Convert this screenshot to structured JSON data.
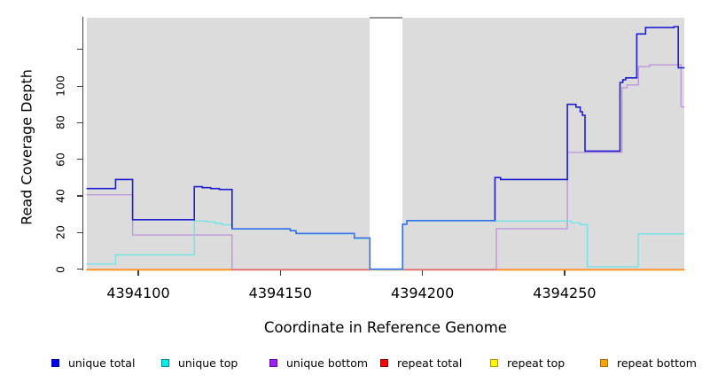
{
  "chart_data": {
    "type": "line",
    "subtype": "step-coverage",
    "title": "",
    "xlabel": "Coordinate in Reference Genome",
    "ylabel": "Read Coverage Depth",
    "xlim": [
      4394082,
      4394292
    ],
    "ylim": [
      0,
      137.5
    ],
    "x_ticks": [
      {
        "value": 4394100,
        "label": "4394100"
      },
      {
        "value": 4394150,
        "label": "4394150"
      },
      {
        "value": 4394200,
        "label": "4394200"
      },
      {
        "value": 4394250,
        "label": "4394250"
      }
    ],
    "y_ticks": [
      {
        "value": 0,
        "label": "0"
      },
      {
        "value": 20,
        "label": "20"
      },
      {
        "value": 40,
        "label": "40"
      },
      {
        "value": 60,
        "label": "60"
      },
      {
        "value": 80,
        "label": "80"
      },
      {
        "value": 100,
        "label": "100"
      },
      {
        "value": 120,
        "label": ""
      }
    ],
    "grid": false,
    "plot_bg_color": "#dcdcdc",
    "masked_region": {
      "x0": 4394181.5,
      "x1": 4394193,
      "fill": "#ffffff",
      "cap_color": "#949494"
    },
    "legend_position": "bottom",
    "overlap_colors": {
      "total_eq_top": "#3b6fe8",
      "bottom_on_zero_line": "#d8738f"
    },
    "series": [
      {
        "id": "unique_total",
        "label": "unique total",
        "line_color": "#1f1fd2",
        "legend_fill": "#0000f0",
        "legend_border": "#0000a8",
        "steps": [
          [
            4394082,
            44
          ],
          [
            4394092,
            49
          ],
          [
            4394098,
            27
          ],
          [
            4394119.7,
            45
          ],
          [
            4394122.5,
            44.5
          ],
          [
            4394125.5,
            44
          ],
          [
            4394128.5,
            43.5
          ],
          [
            4394133,
            22
          ],
          [
            4394153.5,
            21
          ],
          [
            4394155.5,
            19.5
          ],
          [
            4394176,
            17
          ],
          [
            4394181.5,
            0
          ],
          [
            4394193,
            24.5
          ],
          [
            4394194.5,
            26.5
          ],
          [
            4394225.5,
            50
          ],
          [
            4394227.5,
            49
          ],
          [
            4394251,
            90
          ],
          [
            4394254,
            88.5
          ],
          [
            4394255.5,
            86
          ],
          [
            4394256.3,
            84
          ],
          [
            4394257.2,
            64.5
          ],
          [
            4394269.5,
            102
          ],
          [
            4394270.5,
            103.5
          ],
          [
            4394271.5,
            104.5
          ],
          [
            4394275.4,
            128.5
          ],
          [
            4394278.5,
            132
          ],
          [
            4394288.5,
            132.5
          ],
          [
            4394290,
            110
          ]
        ]
      },
      {
        "id": "unique_top",
        "label": "unique top",
        "line_color": "#74e3e6",
        "legend_fill": "#00efef",
        "legend_border": "#0a8a8a",
        "steps": [
          [
            4394082,
            3
          ],
          [
            4394092,
            8
          ],
          [
            4394119.7,
            26.5
          ],
          [
            4394124,
            26
          ],
          [
            4394127,
            25.2
          ],
          [
            4394129.5,
            24.5
          ],
          [
            4394133,
            22
          ],
          [
            4394153.5,
            21
          ],
          [
            4394155.5,
            19.5
          ],
          [
            4394176,
            17
          ],
          [
            4394181.5,
            0
          ],
          [
            4394193,
            24.5
          ],
          [
            4394194.5,
            26.5
          ],
          [
            4394252.5,
            25.5
          ],
          [
            4394255.5,
            24.5
          ],
          [
            4394258,
            1.5
          ],
          [
            4394275.9,
            19.5
          ]
        ]
      },
      {
        "id": "unique_bottom",
        "label": "unique bottom",
        "line_color": "#bf96da",
        "legend_fill": "#a020f0",
        "legend_border": "#5c0da0",
        "steps": [
          [
            4394082,
            41
          ],
          [
            4394098,
            19
          ],
          [
            4394133,
            0
          ],
          [
            4394226,
            22.5
          ],
          [
            4394251,
            64.2
          ],
          [
            4394270.2,
            99.5
          ],
          [
            4394272,
            101
          ],
          [
            4394276,
            111
          ],
          [
            4394280,
            112
          ],
          [
            4394291,
            89
          ]
        ]
      },
      {
        "id": "repeat_total",
        "label": "repeat total",
        "line_color": "#e8313c",
        "legend_fill": "#ff0000",
        "legend_border": "#8f0000",
        "steps": [
          [
            4394082,
            0
          ]
        ]
      },
      {
        "id": "repeat_top",
        "label": "repeat top",
        "line_color": "#f2e435",
        "legend_fill": "#fff600",
        "legend_border": "#b09c00",
        "steps": [
          [
            4394082,
            0
          ]
        ]
      },
      {
        "id": "repeat_bottom",
        "label": "repeat bottom",
        "line_color": "#ff9d1e",
        "legend_fill": "#ffa500",
        "legend_border": "#b06a00",
        "steps": [
          [
            4394082,
            0
          ]
        ]
      }
    ]
  }
}
